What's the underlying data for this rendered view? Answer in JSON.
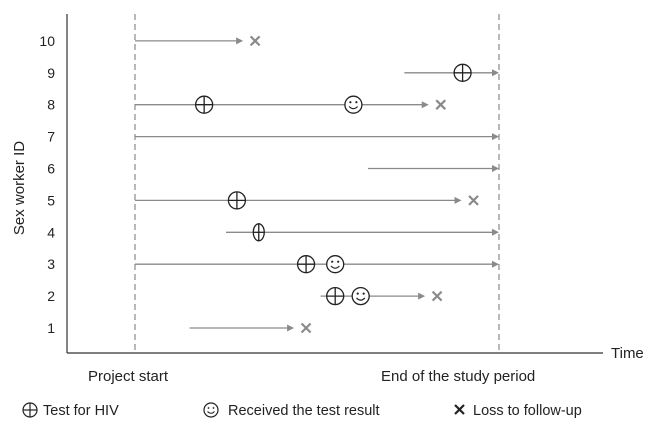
{
  "chart_data": {
    "type": "timeline",
    "ylabel": "Sex worker ID",
    "xlabel": "Time",
    "y_categories": [
      "1",
      "2",
      "3",
      "4",
      "5",
      "6",
      "7",
      "8",
      "9",
      "10"
    ],
    "reference_lines": [
      "Project start",
      "End of the study period"
    ],
    "series": [
      {
        "id": "10",
        "start": 0.0,
        "end": 0.33,
        "end_marker": "loss",
        "events": []
      },
      {
        "id": "9",
        "start": 0.74,
        "end": 1.0,
        "end_marker": "arrow",
        "events": [
          {
            "t": 0.9,
            "type": "test"
          }
        ]
      },
      {
        "id": "8",
        "start": 0.0,
        "end": 0.84,
        "end_marker": "loss",
        "events": [
          {
            "t": 0.19,
            "type": "test"
          },
          {
            "t": 0.6,
            "type": "result"
          }
        ]
      },
      {
        "id": "7",
        "start": 0.0,
        "end": 1.0,
        "end_marker": "arrow",
        "events": []
      },
      {
        "id": "6",
        "start": 0.64,
        "end": 1.0,
        "end_marker": "arrow",
        "events": []
      },
      {
        "id": "5",
        "start": 0.0,
        "end": 0.93,
        "end_marker": "loss",
        "events": [
          {
            "t": 0.28,
            "type": "test"
          }
        ]
      },
      {
        "id": "4",
        "start": 0.25,
        "end": 1.0,
        "end_marker": "arrow",
        "events": [
          {
            "t": 0.34,
            "type": "test_narrow"
          }
        ]
      },
      {
        "id": "3",
        "start": 0.0,
        "end": 1.0,
        "end_marker": "arrow",
        "events": [
          {
            "t": 0.47,
            "type": "test"
          },
          {
            "t": 0.55,
            "type": "result"
          }
        ]
      },
      {
        "id": "2",
        "start": 0.51,
        "end": 0.83,
        "end_marker": "loss",
        "events": [
          {
            "t": 0.55,
            "type": "test"
          },
          {
            "t": 0.62,
            "type": "result"
          }
        ]
      },
      {
        "id": "1",
        "start": 0.15,
        "end": 0.47,
        "end_marker": "loss",
        "events": []
      }
    ]
  },
  "legend": {
    "test_label": "Test for HIV",
    "result_label": "Received the test result",
    "loss_label": "Loss to follow-up"
  },
  "colors": {
    "line": "#8a8a8a",
    "axis": "#333333",
    "text": "#222222"
  }
}
